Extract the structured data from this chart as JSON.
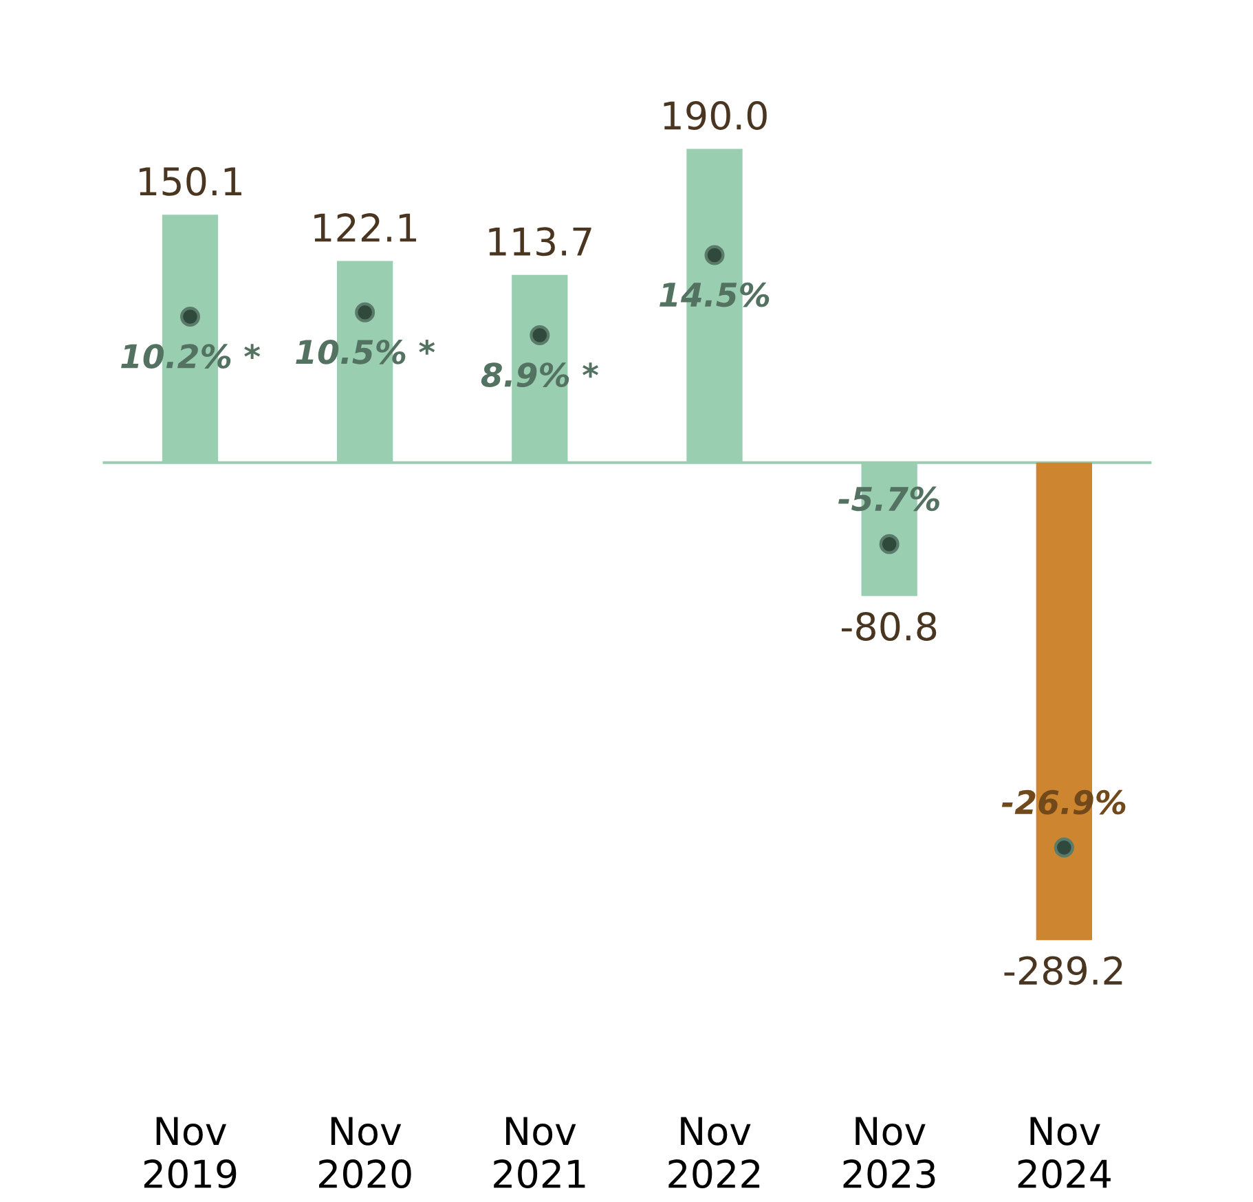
{
  "chart_data": {
    "type": "bar",
    "categories": [
      "Nov\n2019",
      "Nov\n2020",
      "Nov\n2021",
      "Nov\n2022",
      "Nov\n2023",
      "Nov\n2024"
    ],
    "series": [
      {
        "colors": [
          "#99cfb0",
          "#99cfb0",
          "#99cfb0",
          "#99cfb0",
          "#99cfb0",
          "#cd8530"
        ],
        "values": [
          150.1,
          122.1,
          113.7,
          190.0,
          -80.8,
          -289.2
        ],
        "value_labels": [
          "150.1",
          "122.1",
          "113.7",
          "190.0",
          "-80.8",
          "-289.2"
        ]
      },
      {
        "type": "scatter",
        "axis": "y2",
        "color": "#2f4a3c",
        "marker": "circle",
        "values": [
          10.2,
          10.5,
          8.9,
          14.5,
          -5.7,
          -26.9
        ],
        "value_labels": [
          "10.2% *",
          "10.5% *",
          "8.9% *",
          "14.5%",
          "-5.7%",
          "-26.9%"
        ]
      }
    ],
    "ref_lines": [
      {
        "axis": "y",
        "value": 0,
        "color": "#99cfb0"
      }
    ],
    "tick_labels": "x",
    "grid": false,
    "legend": false
  }
}
